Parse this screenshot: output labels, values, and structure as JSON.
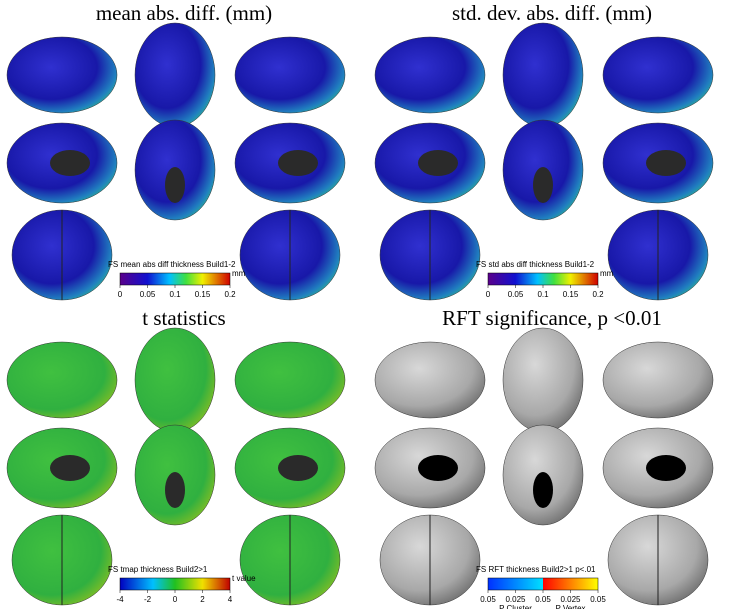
{
  "panels": [
    {
      "title": "mean abs. diff. (mm)",
      "colorbar": {
        "label": "FS mean abs diff thickness Build1-2",
        "ticks": [
          "0",
          "0.05",
          "0.1",
          "0.15",
          "0.2"
        ],
        "unit": "mm"
      }
    },
    {
      "title": "std. dev. abs. diff. (mm)",
      "colorbar": {
        "label": "FS std abs diff thickness Build1-2",
        "ticks": [
          "0",
          "0.05",
          "0.1",
          "0.15",
          "0.2"
        ],
        "unit": "mm"
      }
    },
    {
      "title": "t statistics",
      "colorbar": {
        "label": "FS tmap thickness Build2>1",
        "ticks": [
          "-4",
          "-2",
          "0",
          "2",
          "4"
        ],
        "unit": "t value"
      }
    },
    {
      "title": "RFT significance, p <0.01",
      "colorbar": {
        "label": "FS RFT thickness Build2>1 p<.01",
        "ticks": [
          "0.05",
          "0.025",
          "0.05",
          "0.025",
          "0.05"
        ],
        "unit": "",
        "sublabels": [
          "P Cluster",
          "P Vertex"
        ]
      }
    }
  ]
}
